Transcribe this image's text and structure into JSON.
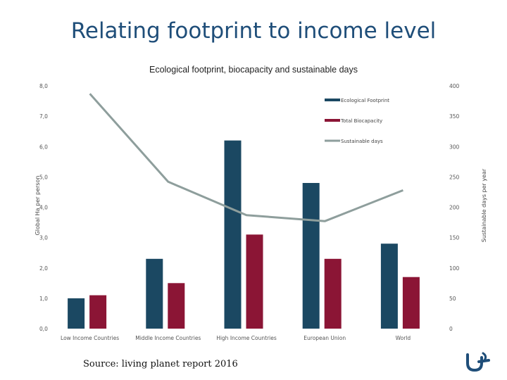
{
  "slide": {
    "title": "Relating footprint to income level",
    "source": "Source: living planet report 2016"
  },
  "chart_data": {
    "type": "bar",
    "title": "Ecological footprint, biocapacity and sustainable days",
    "categories": [
      "Low Income Countries",
      "Middle Income Countries",
      "High Income Countries",
      "European Union",
      "World"
    ],
    "series": [
      {
        "name": "Ecological Footprint",
        "type": "bar",
        "axis": "left",
        "color": "#1b4862",
        "values": [
          1.0,
          2.3,
          6.2,
          4.8,
          2.8
        ]
      },
      {
        "name": "Total Biocapacity",
        "type": "bar",
        "axis": "left",
        "color": "#8b1535",
        "values": [
          1.1,
          1.5,
          3.1,
          2.3,
          1.7
        ]
      },
      {
        "name": "Sustainable days",
        "type": "line",
        "axis": "right",
        "color": "#8e9e9c",
        "values": [
          387,
          242,
          187,
          177,
          228
        ]
      }
    ],
    "ylabel": "Global Ha per person",
    "y2label": "Sustainable days per year",
    "ylim": [
      0,
      8
    ],
    "y2lim": [
      0,
      400
    ],
    "yticks": [
      "0,0",
      "1,0",
      "2,0",
      "3,0",
      "4,0",
      "5,0",
      "6,0",
      "7,0",
      "8,0"
    ],
    "y2ticks": [
      "0",
      "50",
      "100",
      "150",
      "200",
      "250",
      "300",
      "350",
      "400"
    ],
    "legend_position": "top-right",
    "grid": false
  }
}
